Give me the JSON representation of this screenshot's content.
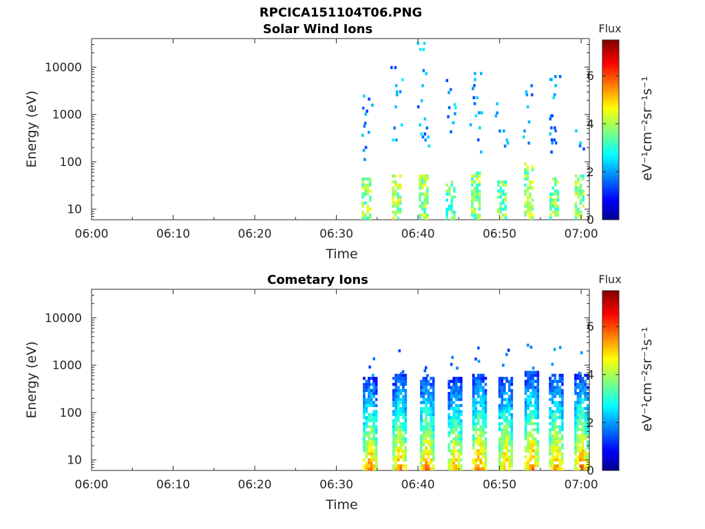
{
  "figure_title": "RPCICA151104T06.PNG",
  "colormap": "jet",
  "chart_data": [
    {
      "type": "heatmap",
      "title": "Solar Wind Ions",
      "xlabel": "Time",
      "ylabel": "Energy (eV)",
      "xticks": [
        "06:00",
        "06:10",
        "06:20",
        "06:30",
        "06:40",
        "06:50",
        "07:00"
      ],
      "xlim_minutes": [
        0,
        61
      ],
      "yscale": "log",
      "yticks": [
        "10",
        "100",
        "1000",
        "10000"
      ],
      "ylim": [
        6,
        40000
      ],
      "colorbar": {
        "title": "Flux",
        "label": "eV⁻¹cm⁻²sr⁻¹s⁻¹",
        "ticks": [
          "0",
          "2",
          "4",
          "6"
        ],
        "range": [
          0,
          7.5
        ]
      },
      "grid": false,
      "bursts": [
        {
          "t": 33.6,
          "flux": 3.3,
          "low_emax": 45,
          "high_emin": 90,
          "high_emax": 3000
        },
        {
          "t": 37.3,
          "flux": 3.5,
          "low_emax": 50,
          "high_emin": 200,
          "high_emax": 10000
        },
        {
          "t": 40.6,
          "flux": 3.4,
          "low_emax": 50,
          "high_emin": 200,
          "high_emax": 40000
        },
        {
          "t": 43.9,
          "flux": 3.0,
          "low_emax": 40,
          "high_emin": 400,
          "high_emax": 6000
        },
        {
          "t": 47.0,
          "flux": 3.3,
          "low_emax": 60,
          "high_emin": 150,
          "high_emax": 7000
        },
        {
          "t": 50.2,
          "flux": 3.1,
          "low_emax": 40,
          "high_emin": 200,
          "high_emax": 2000
        },
        {
          "t": 53.5,
          "flux": 3.4,
          "low_emax": 90,
          "high_emin": 200,
          "high_emax": 5000
        },
        {
          "t": 56.6,
          "flux": 3.2,
          "low_emax": 45,
          "high_emin": 150,
          "high_emax": 7000
        },
        {
          "t": 59.7,
          "flux": 3.2,
          "low_emax": 50,
          "high_emin": 150,
          "high_emax": 500
        }
      ]
    },
    {
      "type": "heatmap",
      "title": "Cometary Ions",
      "xlabel": "Time",
      "ylabel": "Energy (eV)",
      "xticks": [
        "06:00",
        "06:10",
        "06:20",
        "06:30",
        "06:40",
        "06:50",
        "07:00"
      ],
      "xlim_minutes": [
        0,
        61
      ],
      "yscale": "log",
      "yticks": [
        "10",
        "100",
        "1000",
        "10000"
      ],
      "ylim": [
        6,
        40000
      ],
      "colorbar": {
        "title": "Flux",
        "label": "eV⁻¹cm⁻²sr⁻¹s⁻¹",
        "ticks": [
          "0",
          "2",
          "4",
          "6"
        ],
        "range": [
          0,
          7.5
        ]
      },
      "grid": false,
      "bursts": [
        {
          "t": 34.0,
          "flux": 5.8,
          "emax": 500
        },
        {
          "t": 37.6,
          "flux": 5.7,
          "emax": 600
        },
        {
          "t": 41.0,
          "flux": 5.9,
          "emax": 550
        },
        {
          "t": 44.4,
          "flux": 5.6,
          "emax": 500
        },
        {
          "t": 47.4,
          "flux": 6.0,
          "emax": 600
        },
        {
          "t": 50.6,
          "flux": 5.7,
          "emax": 550
        },
        {
          "t": 53.8,
          "flux": 5.9,
          "emax": 700
        },
        {
          "t": 56.8,
          "flux": 5.7,
          "emax": 650
        },
        {
          "t": 59.9,
          "flux": 5.9,
          "emax": 600
        }
      ]
    }
  ]
}
